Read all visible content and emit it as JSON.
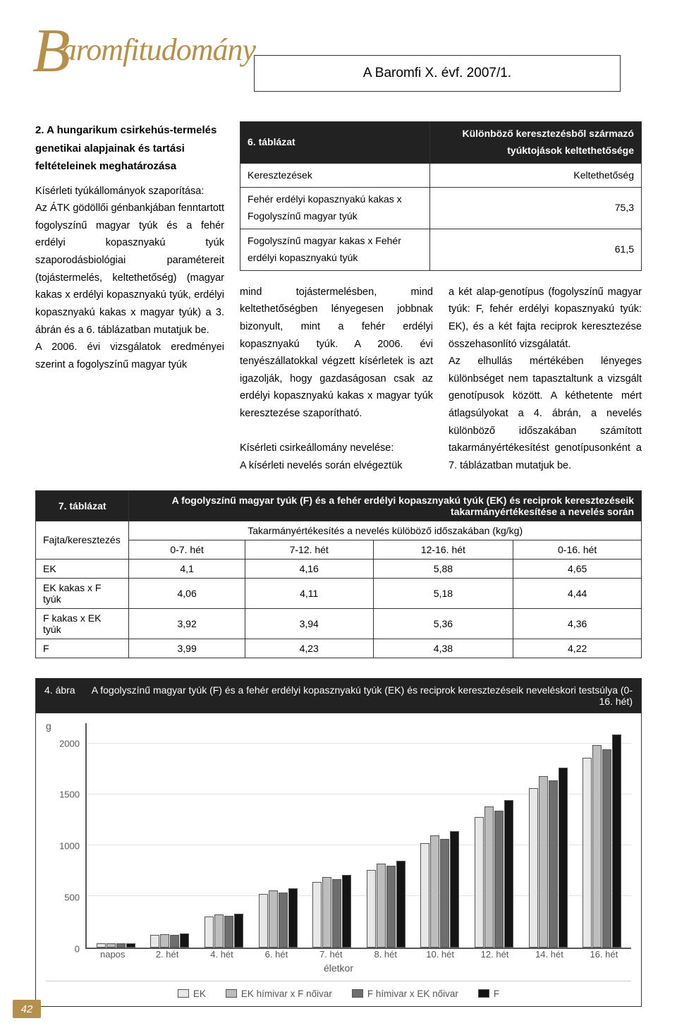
{
  "brand": "aromfitudomány",
  "brand_initial": "B",
  "issue": "A Baromfi X. évf. 2007/1.",
  "section_title": "2. A hungarikum csirkehús-termelés genetikai alapjainak és tartási feltételeinek meghatározása",
  "left_para": "Kísérleti tyúkállományok szaporítása:\nAz ÁTK gödöllői génbankjában fenntartott fogolyszínű magyar tyúk és a fehér erdélyi kopasznyakú tyúk szaporodásbiológiai paramétereit (tojástermelés, keltethetőség) (magyar kakas x erdélyi kopasznyakú tyúk, erdélyi kopasznyakú kakas x magyar tyúk) a 3. ábrán és a 6. táblázatban mutatjuk be.\nA 2006. évi vizsgálatok eredményei szerint a fogolyszínű magyar tyúk",
  "table6": {
    "label": "6. táblázat",
    "title": "Különböző keresztezésből származó tyúktojások keltethetősége",
    "col1": "Keresztezések",
    "col2": "Keltethetőség",
    "rows": [
      [
        "Fehér erdélyi kopasznyakú kakas x Fogolyszínű magyar tyúk",
        "75,3"
      ],
      [
        "Fogolyszínű magyar kakas x Fehér erdélyi kopasznyakú tyúk",
        "61,5"
      ]
    ]
  },
  "mid_col": "mind tojástermelésben, mind keltethetőségben lényegesen jobbnak bizonyult, mint a fehér erdélyi kopasznyakú tyúk. A 2006. évi tenyészállatokkal végzett kísérletek is azt igazolják, hogy gazdaságosan csak az erdélyi kopasznyakú kakas x magyar tyúk keresztezése szaporítható.\n\nKísérleti csirkeállomány nevelése:\nA kísérleti nevelés során elvégeztük",
  "right_col": "a két alap-genotípus (fogolyszínű magyar tyúk: F, fehér erdélyi kopasznyakú tyúk: EK), és a két fajta reciprok keresztezése összehasonlító vizsgálatát.\nAz elhullás mértékében lényeges különbséget nem tapasztaltunk a vizsgált genotípusok között. A kéthetente mért átlagsúlyokat a 4. ábrán, a nevelés különböző időszakában számított takarmányértékesítést genotípusonként a 7. táblázatban mutatjuk be.",
  "table7": {
    "label": "7. táblázat",
    "title": "A fogolyszínű magyar tyúk (F) és a fehér erdélyi kopasznyakú tyúk (EK) és reciprok keresztezéseik takarmányértékesítése a nevelés során",
    "rowhead": "Fajta/keresztezés",
    "subhead": "Takarmányértékesítés a nevelés külöböző időszakában (kg/kg)",
    "cols": [
      "0-7. hét",
      "7-12. hét",
      "12-16. hét",
      "0-16. hét"
    ],
    "rows": [
      [
        "EK",
        "4,1",
        "4,16",
        "5,88",
        "4,65"
      ],
      [
        "EK kakas x F tyúk",
        "4,06",
        "4,11",
        "5,18",
        "4,44"
      ],
      [
        "F kakas x EK tyúk",
        "3,92",
        "3,94",
        "5,36",
        "4,36"
      ],
      [
        "F",
        "3,99",
        "4,23",
        "4,38",
        "4,22"
      ]
    ]
  },
  "figure4": {
    "label": "4. ábra",
    "title": "A fogolyszínű magyar tyúk (F) és a fehér erdélyi kopasznyakú tyúk (EK) és reciprok keresztezéseik neveléskori testsúlya (0-16. hét)",
    "y_unit": "g",
    "y_ticks": [
      0,
      500,
      1000,
      1500,
      2000
    ],
    "y_max": 2200,
    "x_title": "életkor",
    "categories": [
      "napos",
      "2. hét",
      "4. hét",
      "6. hét",
      "7. hét",
      "8. hét",
      "10. hét",
      "12. hét",
      "14. hét",
      "16. hét"
    ],
    "series": [
      {
        "name": "EK",
        "color": "#e7e7e7",
        "values": [
          40,
          120,
          300,
          520,
          640,
          760,
          1020,
          1280,
          1560,
          1860
        ]
      },
      {
        "name": "EK hímivar x F nőivar",
        "color": "#bdbdbd",
        "values": [
          40,
          130,
          320,
          560,
          690,
          820,
          1100,
          1380,
          1680,
          1980
        ]
      },
      {
        "name": "F hímivar x EK nőivar",
        "color": "#6e6e6e",
        "values": [
          40,
          125,
          310,
          540,
          670,
          800,
          1060,
          1340,
          1640,
          1940
        ]
      },
      {
        "name": "F",
        "color": "#141414",
        "values": [
          40,
          135,
          330,
          580,
          710,
          850,
          1140,
          1440,
          1760,
          2090
        ]
      }
    ]
  },
  "page_number": "42"
}
